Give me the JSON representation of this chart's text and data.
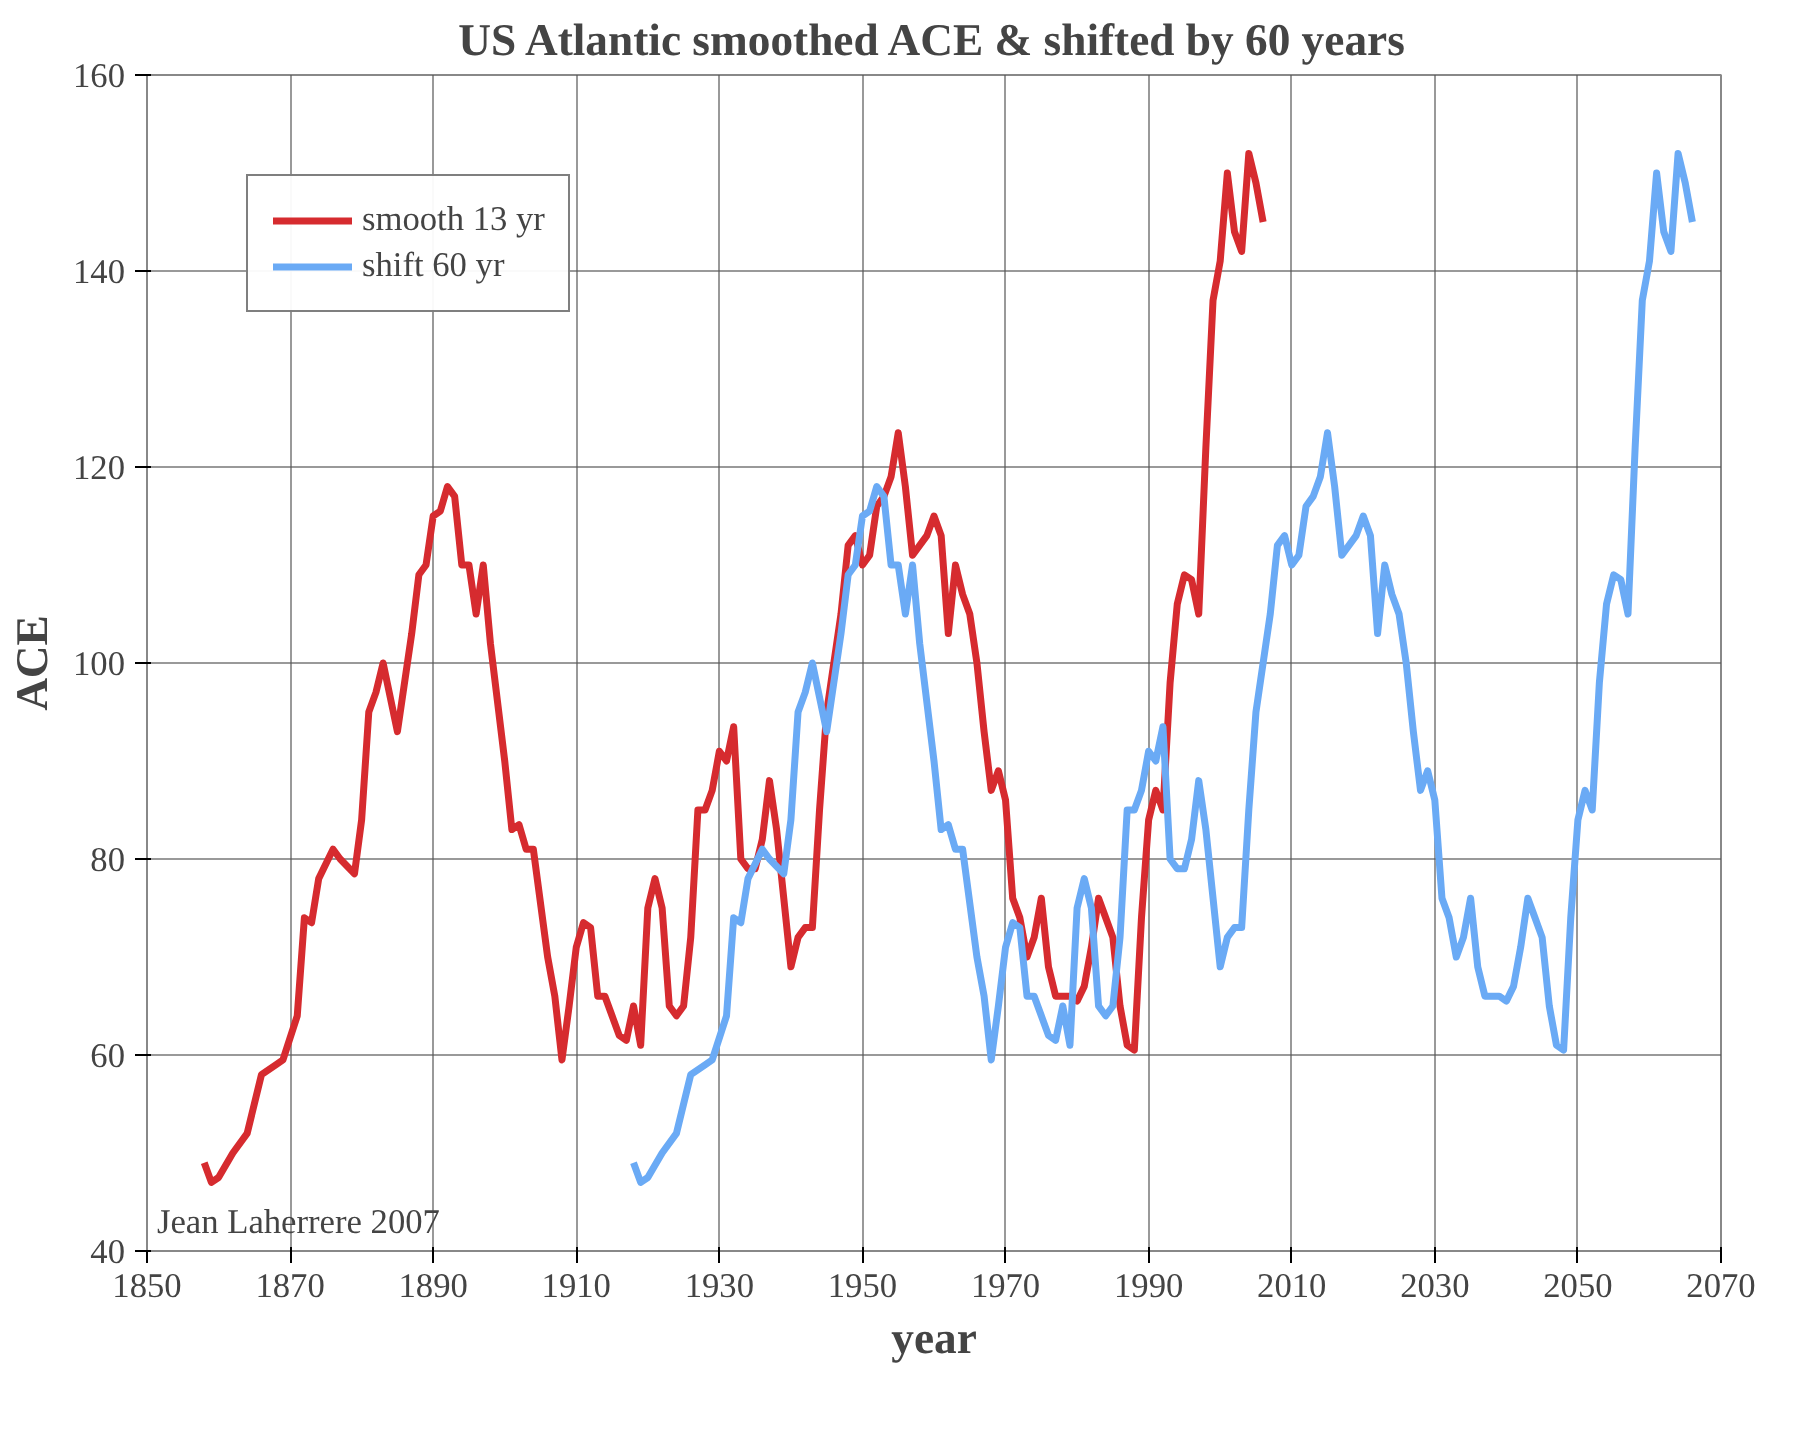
{
  "chart_data": {
    "type": "line",
    "title": "US Atlantic smoothed ACE & shifted by 60 years",
    "xlabel": "year",
    "ylabel": "ACE",
    "annotations": [
      "Jean Laherrere 2007"
    ],
    "xlim": [
      1850,
      2070
    ],
    "xticks": [
      1850,
      1870,
      1890,
      1910,
      1930,
      1950,
      1970,
      1990,
      2010,
      2030,
      2050,
      2070
    ],
    "ylim": [
      40,
      160
    ],
    "yticks": [
      40,
      60,
      80,
      100,
      120,
      140,
      160
    ],
    "grid": true,
    "legend": "top left",
    "marker": "none",
    "line_style": "solid",
    "series": [
      {
        "name": "smooth 13 yr",
        "color": "#d62b2f",
        "x": [
          1858,
          1859,
          1860,
          1862,
          1864,
          1866,
          1868,
          1869,
          1871,
          1872,
          1873,
          1874,
          1876,
          1877,
          1879,
          1880,
          1881,
          1882,
          1883,
          1885,
          1887,
          1888,
          1889,
          1890,
          1891,
          1892,
          1893,
          1894,
          1895,
          1896,
          1897,
          1898,
          1900,
          1901,
          1902,
          1903,
          1904,
          1906,
          1907,
          1908,
          1909,
          1910,
          1911,
          1912,
          1913,
          1914,
          1915,
          1916,
          1917,
          1918,
          1919,
          1920,
          1921,
          1922,
          1923,
          1924,
          1925,
          1926,
          1927,
          1928,
          1929,
          1930,
          1931,
          1932,
          1933,
          1934,
          1935,
          1936,
          1937,
          1938,
          1939,
          1940,
          1941,
          1942,
          1943,
          1944,
          1945,
          1946,
          1947,
          1948,
          1949,
          1950,
          1951,
          1952,
          1953,
          1954,
          1955,
          1956,
          1957,
          1958,
          1959,
          1960,
          1961,
          1962,
          1963,
          1964,
          1965,
          1966,
          1967,
          1968,
          1969,
          1970,
          1971,
          1972,
          1973,
          1974,
          1975,
          1976,
          1977,
          1978,
          1979,
          1980,
          1981,
          1982,
          1983,
          1984,
          1985,
          1986,
          1987,
          1988,
          1989,
          1990,
          1991,
          1992,
          1993,
          1994,
          1995,
          1996,
          1997,
          1998,
          1999,
          2000,
          2001,
          2002,
          2003,
          2004,
          2005,
          2006
        ],
        "values": [
          49,
          47,
          47.5,
          50,
          52,
          58,
          59,
          59.5,
          64,
          74,
          73.5,
          78,
          81,
          80,
          78.5,
          84,
          95,
          97,
          100,
          93,
          103,
          109,
          110,
          115,
          115.5,
          118,
          117,
          110,
          110,
          105,
          110,
          102,
          90,
          83,
          83.5,
          81,
          81,
          70,
          66,
          59.5,
          65,
          71,
          73.5,
          73,
          66,
          66,
          64,
          62,
          61.5,
          65,
          61,
          75,
          78,
          75,
          65,
          64,
          65,
          72,
          85,
          85,
          87,
          91,
          90,
          93.5,
          80,
          79,
          79,
          82,
          88,
          83,
          76,
          69,
          72,
          73,
          73,
          85,
          95,
          100,
          105,
          112,
          113,
          110,
          111,
          116,
          117,
          119,
          123.5,
          118,
          111,
          112,
          113,
          115,
          113,
          103,
          110,
          107,
          105,
          100,
          93,
          87,
          89,
          86,
          76,
          74,
          70,
          72,
          76,
          69,
          66,
          66,
          66,
          65.5,
          67,
          71,
          76,
          74,
          72,
          65,
          61,
          60.5,
          74,
          84,
          87,
          85,
          98,
          106,
          109,
          108.5,
          105,
          122,
          137,
          141,
          150,
          144,
          142,
          152,
          149,
          145
        ]
      },
      {
        "name": "shift 60 yr",
        "color": "#6aaaf5",
        "x": [
          1918,
          1919,
          1920,
          1922,
          1924,
          1926,
          1928,
          1929,
          1931,
          1932,
          1933,
          1934,
          1936,
          1937,
          1939,
          1940,
          1941,
          1942,
          1943,
          1945,
          1947,
          1948,
          1949,
          1950,
          1951,
          1952,
          1953,
          1954,
          1955,
          1956,
          1957,
          1958,
          1960,
          1961,
          1962,
          1963,
          1964,
          1966,
          1967,
          1968,
          1969,
          1970,
          1971,
          1972,
          1973,
          1974,
          1975,
          1976,
          1977,
          1978,
          1979,
          1980,
          1981,
          1982,
          1983,
          1984,
          1985,
          1986,
          1987,
          1988,
          1989,
          1990,
          1991,
          1992,
          1993,
          1994,
          1995,
          1996,
          1997,
          1998,
          1999,
          2000,
          2001,
          2002,
          2003,
          2004,
          2005,
          2006,
          2007,
          2008,
          2009,
          2010,
          2011,
          2012,
          2013,
          2014,
          2015,
          2016,
          2017,
          2018,
          2019,
          2020,
          2021,
          2022,
          2023,
          2024,
          2025,
          2026,
          2027,
          2028,
          2029,
          2030,
          2031,
          2032,
          2033,
          2034,
          2035,
          2036,
          2037,
          2038,
          2039,
          2040,
          2041,
          2042,
          2043,
          2044,
          2045,
          2046,
          2047,
          2048,
          2049,
          2050,
          2051,
          2052,
          2053,
          2054,
          2055,
          2056,
          2057,
          2058,
          2059,
          2060,
          2061,
          2062,
          2063,
          2064,
          2065,
          2066
        ],
        "values": [
          49,
          47,
          47.5,
          50,
          52,
          58,
          59,
          59.5,
          64,
          74,
          73.5,
          78,
          81,
          80,
          78.5,
          84,
          95,
          97,
          100,
          93,
          103,
          109,
          110,
          115,
          115.5,
          118,
          117,
          110,
          110,
          105,
          110,
          102,
          90,
          83,
          83.5,
          81,
          81,
          70,
          66,
          59.5,
          65,
          71,
          73.5,
          73,
          66,
          66,
          64,
          62,
          61.5,
          65,
          61,
          75,
          78,
          75,
          65,
          64,
          65,
          72,
          85,
          85,
          87,
          91,
          90,
          93.5,
          80,
          79,
          79,
          82,
          88,
          83,
          76,
          69,
          72,
          73,
          73,
          85,
          95,
          100,
          105,
          112,
          113,
          110,
          111,
          116,
          117,
          119,
          123.5,
          118,
          111,
          112,
          113,
          115,
          113,
          103,
          110,
          107,
          105,
          100,
          93,
          87,
          89,
          86,
          76,
          74,
          70,
          72,
          76,
          69,
          66,
          66,
          66,
          65.5,
          67,
          71,
          76,
          74,
          72,
          65,
          61,
          60.5,
          74,
          84,
          87,
          85,
          98,
          106,
          109,
          108.5,
          105,
          122,
          137,
          141,
          150,
          144,
          142,
          152,
          149,
          145
        ]
      }
    ]
  }
}
